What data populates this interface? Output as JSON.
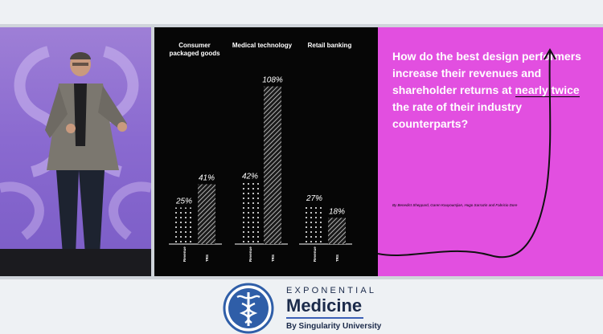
{
  "slide": {
    "categories": [
      {
        "label": "Consumer packaged goods"
      },
      {
        "label": "Medical technology"
      },
      {
        "label": "Retail banking"
      }
    ],
    "bar_axis_labels": [
      "Revenue",
      "TRS"
    ],
    "question_before": "How do the best design performers increase their revenues and shareholder returns at ",
    "question_underlined": "nearly twice",
    "question_after": " the rate of their industry counterparts?",
    "authors": "By Benedict Sheppard, Garen Kouyoumjian, Hugo Sarrazin and Fabricio Dore",
    "colors": {
      "pink": "#e24fe0",
      "black": "#060606"
    }
  },
  "chart_data": {
    "type": "bar",
    "categories": [
      "Consumer packaged goods",
      "Medical technology",
      "Retail banking"
    ],
    "series": [
      {
        "name": "Revenue",
        "values": [
          25,
          42,
          27
        ],
        "labels": [
          "25%",
          "42%",
          "27%"
        ]
      },
      {
        "name": "TRS",
        "values": [
          41,
          108,
          18
        ],
        "labels": [
          "41%",
          "108%",
          "18%"
        ]
      }
    ],
    "xlabel": "",
    "ylabel": "",
    "ylim": [
      0,
      110
    ],
    "grid": false
  },
  "branding": {
    "line1": "EXPONENTIAL",
    "line2": "Medicine",
    "line3": "By Singularity University",
    "logo_icon": "caduceus-icon",
    "accent": "#3b5fb5"
  }
}
